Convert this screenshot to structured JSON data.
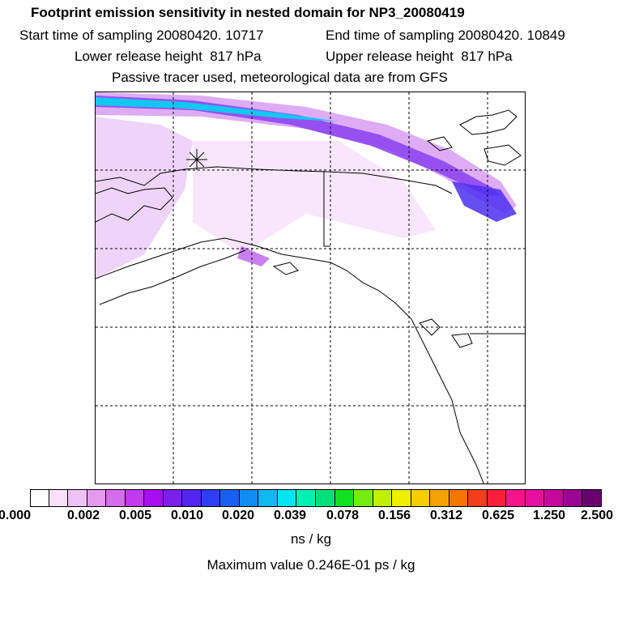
{
  "header": {
    "title": "Footprint emission sensitivity in nested domain for NP3_20080419",
    "start_time": "Start time of sampling 20080420. 10717",
    "end_time": "End time of sampling 20080420. 10849",
    "lower_release": "Lower release height  817 hPa",
    "upper_release": "Upper release height  817 hPa",
    "tracer_info": "Passive tracer used, meteorological data are from GFS"
  },
  "colorbar": {
    "colors": [
      "#ffffff",
      "#f8e0fb",
      "#eec2f6",
      "#e59af0",
      "#d66cec",
      "#c23af0",
      "#a70fee",
      "#7b1ee8",
      "#5226ee",
      "#2f3ef0",
      "#1761f0",
      "#118cf1",
      "#12b7f0",
      "#00e6f0",
      "#00f0b4",
      "#00e07a",
      "#13e020",
      "#74ec10",
      "#c0f000",
      "#eef000",
      "#f7cd00",
      "#f4a200",
      "#f67400",
      "#f23e1a",
      "#f81e3c",
      "#f5148c",
      "#e5109e",
      "#c4089a",
      "#9a0490",
      "#6a0070"
    ],
    "tick_labels": [
      "0.000",
      "0.002",
      "0.005",
      "0.010",
      "0.020",
      "0.039",
      "0.078",
      "0.156",
      "0.312",
      "0.625",
      "1.250",
      "2.500"
    ],
    "units": "ns / kg"
  },
  "footer": {
    "max_value": "Maximum value  0.246E-01 ps / kg"
  }
}
